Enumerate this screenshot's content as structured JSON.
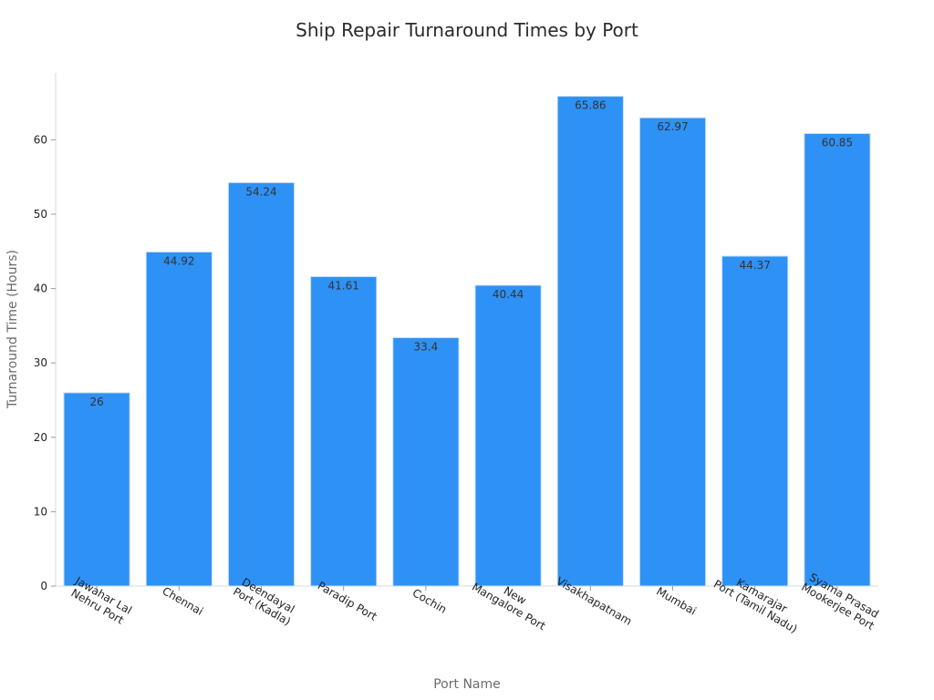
{
  "chart_data": {
    "type": "bar",
    "title": "Ship Repair Turnaround Times by Port",
    "xlabel": "Port Name",
    "ylabel": "Turnaround Time (Hours)",
    "ylim": [
      0,
      69
    ],
    "yticks": [
      0,
      10,
      20,
      30,
      40,
      50,
      60
    ],
    "grid": false,
    "categories": [
      [
        "Jawahar Lal",
        "Nehru Port"
      ],
      [
        "Chennai"
      ],
      [
        "Deendayal",
        "Port (Kadla)"
      ],
      [
        "Paradip Port"
      ],
      [
        "Cochin"
      ],
      [
        "New",
        "Mangalore Port"
      ],
      [
        "Visakhapatnam"
      ],
      [
        "Mumbai"
      ],
      [
        "Kamarajar",
        "Port (Tamil Nadu)"
      ],
      [
        "Syama Prasad",
        "Mookerjee Port"
      ]
    ],
    "values": [
      26,
      44.92,
      54.24,
      41.61,
      33.4,
      40.44,
      65.86,
      62.97,
      44.37,
      60.85
    ],
    "bar_color": "#2e91f5"
  }
}
